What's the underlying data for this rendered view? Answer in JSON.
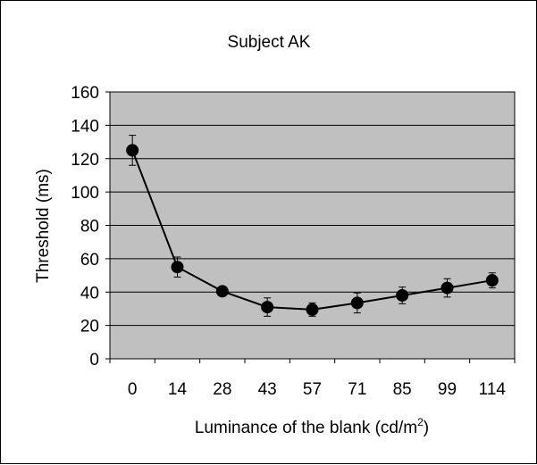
{
  "chart_data": {
    "type": "line",
    "title": "Subject AK",
    "xlabel": "Luminance of the blank (cd/m",
    "xlabel_superscript": "2",
    "xlabel_suffix": ")",
    "ylabel": "Threshold (ms)",
    "categories": [
      "0",
      "14",
      "28",
      "43",
      "57",
      "71",
      "85",
      "99",
      "114"
    ],
    "series": [
      {
        "values": [
          125,
          55,
          40.5,
          31,
          29.5,
          33.5,
          38,
          42.5,
          47
        ],
        "error": [
          9,
          6,
          2.5,
          5.5,
          4,
          6,
          5,
          5.5,
          4.5
        ]
      }
    ],
    "ylim": [
      0,
      160
    ],
    "yticks": [
      0,
      20,
      40,
      60,
      80,
      100,
      120,
      140,
      160
    ],
    "grid": true,
    "plot_background": "#c0c0c0",
    "line_color": "#000000",
    "marker_color": "#000000"
  }
}
